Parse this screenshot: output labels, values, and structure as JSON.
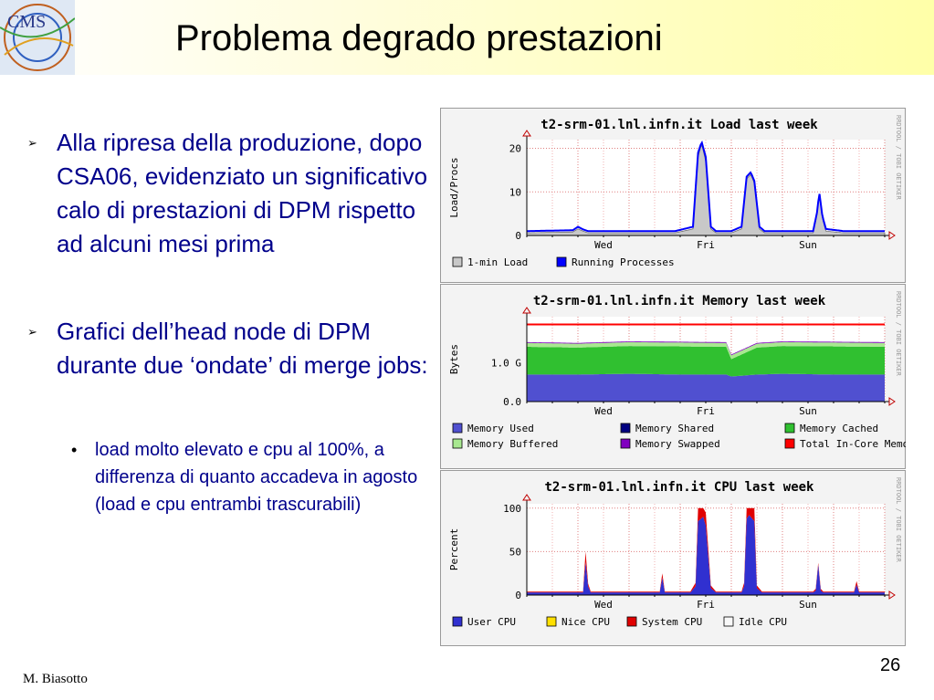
{
  "slide": {
    "title": "Problema degrado prestazioni",
    "author": "M. Biasotto",
    "page_number": "26",
    "logo_text": "CMS",
    "bullets": [
      {
        "text": "Alla ripresa della produzione, dopo CSA06, evidenziato un significativo calo di prestazioni di DPM rispetto ad alcuni mesi prima",
        "marker": "➢"
      },
      {
        "text": "Grafici dell’head node di DPM durante due ‘ondate’ di merge jobs:",
        "marker": "➢"
      }
    ],
    "sub_bullets": [
      {
        "text": "load molto elevato e cpu al 100%, a differenza di quanto accadeva in agosto (load e cpu entrambi trascurabili)",
        "marker": "•"
      }
    ]
  },
  "chart_data": [
    {
      "type": "area",
      "title": "t2-srm-01.lnl.infn.it Load last week",
      "ylabel": "Load/Procs",
      "watermark": "RRDTOOL / TOBI OETIKER",
      "ylim": [
        0,
        22
      ],
      "yticks": [
        0,
        10,
        20
      ],
      "ytick_labels": [
        "0",
        "10",
        "20"
      ],
      "x_range": [
        0,
        7
      ],
      "x_ticks": [
        {
          "label": "Wed",
          "x": 1.5
        },
        {
          "label": "Fri",
          "x": 3.5
        },
        {
          "label": "Sun",
          "x": 5.5
        }
      ],
      "series": [
        {
          "name": "1-min Load",
          "color": "#c8c8c8",
          "kind": "area",
          "x": [
            0,
            0.9,
            1.0,
            1.1,
            1.2,
            2.9,
            3.25,
            3.35,
            3.42,
            3.5,
            3.6,
            3.7,
            4.0,
            4.2,
            4.3,
            4.38,
            4.45,
            4.55,
            4.65,
            5.0,
            5.6,
            5.68,
            5.72,
            5.78,
            5.85,
            6.2,
            6.9
          ],
          "values": [
            0.6,
            0.8,
            1.5,
            1.0,
            0.6,
            0.6,
            1.5,
            18,
            21,
            17,
            1.5,
            0.6,
            0.6,
            1.5,
            13,
            14,
            12,
            1.5,
            0.6,
            0.6,
            0.6,
            5,
            10,
            4,
            1,
            0.6,
            0.6
          ]
        },
        {
          "name": "Running Processes",
          "color": "#0000ff",
          "kind": "line",
          "x": [
            0,
            0.9,
            1.0,
            1.1,
            1.2,
            2.9,
            3.25,
            3.35,
            3.42,
            3.5,
            3.6,
            3.7,
            4.0,
            4.2,
            4.3,
            4.38,
            4.45,
            4.55,
            4.65,
            5.0,
            5.6,
            5.68,
            5.72,
            5.78,
            5.85,
            6.2,
            6.9
          ],
          "values": [
            1.0,
            1.2,
            2.0,
            1.4,
            1.0,
            1.0,
            2.0,
            19,
            21.5,
            18,
            2.0,
            1.0,
            1.0,
            2.0,
            13.5,
            14.5,
            12.5,
            2.0,
            1.0,
            1.0,
            1.0,
            5.5,
            10,
            4.5,
            1.5,
            1.0,
            1.0
          ]
        }
      ],
      "legend": [
        {
          "name": "1-min Load",
          "color": "#c8c8c8"
        },
        {
          "name": "Running Processes",
          "color": "#0000ff"
        }
      ]
    },
    {
      "type": "area",
      "title": "t2-srm-01.lnl.infn.it Memory last week",
      "ylabel": "Bytes",
      "watermark": "RRDTOOL / TOBI OETIKER",
      "ylim": [
        0,
        2.2
      ],
      "yticks": [
        0,
        1.0
      ],
      "ytick_labels": [
        "0.0",
        "1.0 G"
      ],
      "x_range": [
        0,
        7
      ],
      "x_ticks": [
        {
          "label": "Wed",
          "x": 1.5
        },
        {
          "label": "Fri",
          "x": 3.5
        },
        {
          "label": "Sun",
          "x": 5.5
        }
      ],
      "series": [
        {
          "name": "Memory Used",
          "color": "#5050d0",
          "kind": "stack",
          "x": [
            0,
            1,
            2,
            3,
            3.9,
            4.0,
            4.5,
            5,
            6,
            7
          ],
          "values": [
            0.7,
            0.7,
            0.72,
            0.7,
            0.7,
            0.65,
            0.7,
            0.72,
            0.7,
            0.7
          ]
        },
        {
          "name": "Memory Shared",
          "color": "#000080",
          "kind": "stack",
          "x": [
            0,
            7
          ],
          "values": [
            0,
            0
          ]
        },
        {
          "name": "Memory Cached",
          "color": "#30c030",
          "kind": "stack",
          "x": [
            0,
            1,
            2,
            3,
            3.9,
            4.0,
            4.5,
            5,
            6,
            7
          ],
          "values": [
            0.72,
            0.7,
            0.72,
            0.73,
            0.72,
            0.45,
            0.7,
            0.72,
            0.73,
            0.72
          ]
        },
        {
          "name": "Memory Buffered",
          "color": "#a8e890",
          "kind": "stack",
          "x": [
            0,
            7
          ],
          "values": [
            0.1,
            0.1
          ]
        },
        {
          "name": "Memory Swapped",
          "color": "#8000c0",
          "kind": "stack",
          "x": [
            0,
            7
          ],
          "values": [
            0.02,
            0.02
          ]
        },
        {
          "name": "Total In-Core Memory",
          "color": "#ff0000",
          "kind": "line",
          "x": [
            0,
            7
          ],
          "values": [
            2.0,
            2.0
          ]
        }
      ],
      "legend": [
        {
          "name": "Memory Used",
          "color": "#5050d0"
        },
        {
          "name": "Memory Shared",
          "color": "#000080"
        },
        {
          "name": "Memory Cached",
          "color": "#30c030"
        },
        {
          "name": "Memory Buffered",
          "color": "#a8e890"
        },
        {
          "name": "Memory Swapped",
          "color": "#8000c0"
        },
        {
          "name": "Total In-Core Memory",
          "color": "#ff0000"
        }
      ]
    },
    {
      "type": "area",
      "title": "t2-srm-01.lnl.infn.it CPU last week",
      "ylabel": "Percent",
      "watermark": "RRDTOOL / TOBI OETIKER",
      "ylim": [
        0,
        105
      ],
      "yticks": [
        0,
        50,
        100
      ],
      "ytick_labels": [
        "0",
        "50",
        "100"
      ],
      "x_range": [
        0,
        7
      ],
      "x_ticks": [
        {
          "label": "Wed",
          "x": 1.5
        },
        {
          "label": "Fri",
          "x": 3.5
        },
        {
          "label": "Sun",
          "x": 5.5
        }
      ],
      "series": [
        {
          "name": "User CPU",
          "color": "#3030d0",
          "kind": "stack",
          "x": [
            0,
            1.1,
            1.15,
            1.2,
            1.25,
            2.6,
            2.65,
            2.7,
            3.2,
            3.3,
            3.35,
            3.45,
            3.5,
            3.6,
            3.7,
            4.2,
            4.25,
            4.3,
            4.35,
            4.45,
            4.5,
            4.6,
            5.6,
            5.65,
            5.7,
            5.75,
            5.8,
            6.4,
            6.45,
            6.5,
            7
          ],
          "values": [
            3,
            3,
            38,
            10,
            3,
            3,
            20,
            3,
            3,
            10,
            85,
            90,
            80,
            8,
            3,
            3,
            10,
            88,
            92,
            85,
            8,
            3,
            3,
            5,
            35,
            5,
            3,
            3,
            12,
            3,
            3
          ]
        },
        {
          "name": "Nice CPU",
          "color": "#ffe000",
          "kind": "stack",
          "x": [
            0,
            7
          ],
          "values": [
            0,
            0
          ]
        },
        {
          "name": "System CPU",
          "color": "#e00000",
          "kind": "stack",
          "x": [
            0,
            1.1,
            1.15,
            1.2,
            1.25,
            2.6,
            2.65,
            2.7,
            3.2,
            3.3,
            3.35,
            3.45,
            3.5,
            3.6,
            3.7,
            4.2,
            4.25,
            4.3,
            4.35,
            4.45,
            4.5,
            4.6,
            5.6,
            5.65,
            5.75,
            5.8,
            6.4,
            6.45,
            6.5,
            7
          ],
          "values": [
            1,
            1,
            12,
            3,
            1,
            1,
            5,
            1,
            1,
            4,
            15,
            10,
            15,
            3,
            1,
            1,
            4,
            12,
            8,
            15,
            3,
            1,
            1,
            2,
            2,
            1,
            1,
            4,
            1,
            1
          ]
        },
        {
          "name": "Idle CPU",
          "color": "#f8f8f8",
          "kind": "stack",
          "x": [
            0,
            7
          ],
          "values": [
            0,
            0
          ]
        }
      ],
      "legend": [
        {
          "name": "User CPU",
          "color": "#3030d0"
        },
        {
          "name": "Nice CPU",
          "color": "#ffe000"
        },
        {
          "name": "System CPU",
          "color": "#e00000"
        },
        {
          "name": "Idle CPU",
          "color": "#f8f8f8"
        }
      ]
    }
  ]
}
